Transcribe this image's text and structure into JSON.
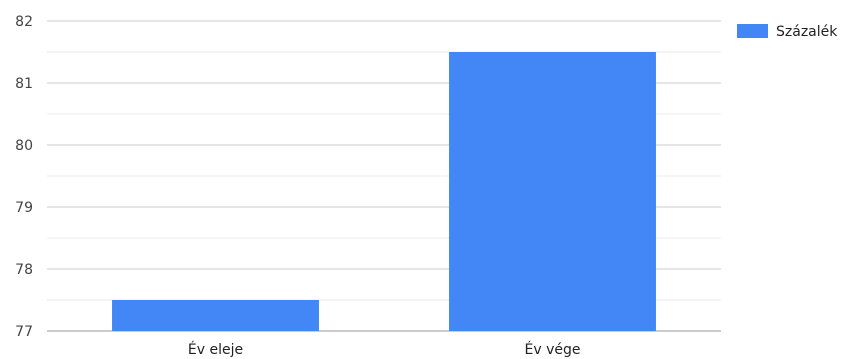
{
  "chart_data": {
    "type": "bar",
    "categories": [
      "Év eleje",
      "Év vége"
    ],
    "series": [
      {
        "name": "Százalék",
        "values": [
          77.5,
          81.5
        ],
        "color": "#4287f5"
      }
    ],
    "yticks": [
      "77",
      "78",
      "79",
      "80",
      "81",
      "82"
    ],
    "ylim": [
      77,
      82
    ],
    "grid": true,
    "legend": "top-right",
    "gridline_color": "#cccccc",
    "minor_gridline_color": "#ebebeb"
  }
}
